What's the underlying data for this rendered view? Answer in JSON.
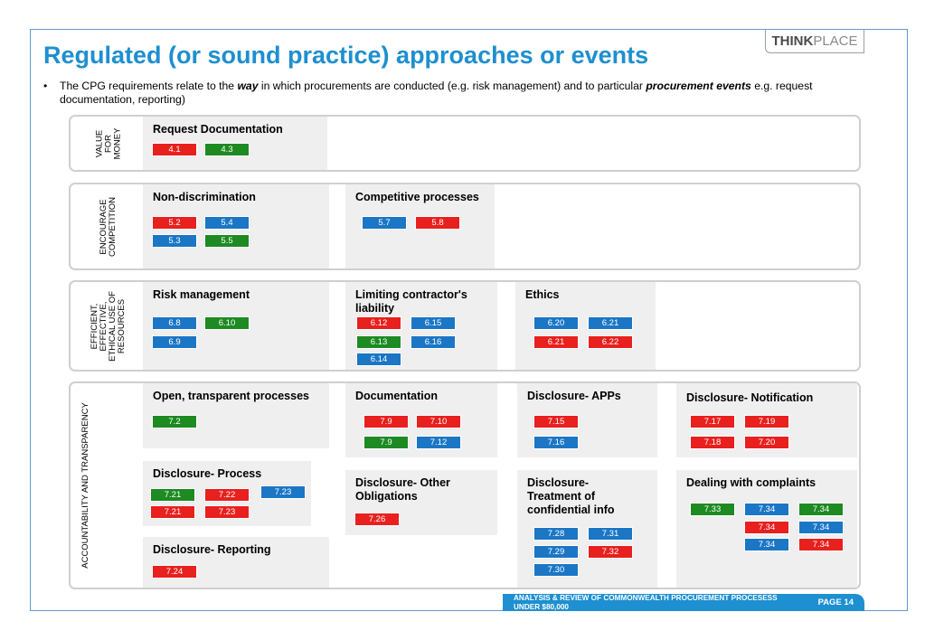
{
  "title": "Regulated (or sound practice) approaches or events",
  "logo": {
    "bold": "THINK",
    "light": "PLACE"
  },
  "bullet": {
    "dot": "•",
    "part1": "The CPG requirements relate to the ",
    "way": "way",
    "part2": " in which procurements are conducted (e.g. risk management) and to particular ",
    "events": "procurement events",
    "part3": " e.g. request documentation, reporting)"
  },
  "sections": {
    "vfm": {
      "label": [
        "VALUE",
        "FOR",
        "MONEY"
      ]
    },
    "ec": {
      "label": [
        "ENCOURAGE",
        "COMPETITION"
      ]
    },
    "eff": {
      "label": [
        "EFFICIENT,",
        "EFFECTIVE,",
        "ETHICAL USE OF",
        "RESOURCES"
      ]
    },
    "acc": {
      "label": [
        "ACCOUNTABILITY AND TRANSPARENCY"
      ]
    }
  },
  "boxes": {
    "request_doc": {
      "title": "Request Documentation",
      "tags": [
        "4.1",
        "4.3"
      ]
    },
    "non_disc": {
      "title": "Non-discrimination",
      "tags": [
        "5.2",
        "5.4",
        "5.3",
        "5.5"
      ]
    },
    "comp_proc": {
      "title": "Competitive processes",
      "tags": [
        "5.7",
        "5.8"
      ]
    },
    "risk": {
      "title": "Risk management",
      "tags": [
        "6.8",
        "6.10",
        "6.9"
      ]
    },
    "liability": {
      "title": "Limiting contractor's liability",
      "tags": [
        "6.12",
        "6.15",
        "6.13",
        "6.16",
        "6.14"
      ]
    },
    "ethics": {
      "title": "Ethics",
      "tags": [
        "6.20",
        "6.21",
        "6.21",
        "6.22"
      ]
    },
    "open": {
      "title": "Open, transparent processes",
      "tags": [
        "7.2"
      ]
    },
    "documentation": {
      "title": "Documentation",
      "tags": [
        "7.9",
        "7.10",
        "7.9",
        "7.12"
      ]
    },
    "apps": {
      "title": "Disclosure- APPs",
      "tags": [
        "7.15",
        "7.16"
      ]
    },
    "notification": {
      "title": "Disclosure- Notification",
      "tags": [
        "7.17",
        "7.19",
        "7.18",
        "7.20"
      ]
    },
    "process": {
      "title": "Disclosure- Process",
      "tags": [
        "7.21",
        "7.22",
        "7.23",
        "7.21",
        "7.23"
      ]
    },
    "other": {
      "title": "Disclosure- Other Obligations",
      "tags": [
        "7.26"
      ]
    },
    "confidential": {
      "title": "Disclosure- Treatment of confidential info",
      "tags": [
        "7.28",
        "7.31",
        "7.29",
        "7.32",
        "7.30"
      ]
    },
    "complaints": {
      "title": "Dealing with complaints",
      "tags": [
        "7.33",
        "7.34",
        "7.34",
        "7.34",
        "7.34",
        "7.34",
        "7.34"
      ]
    },
    "reporting": {
      "title": "Disclosure- Reporting",
      "tags": [
        "7.24"
      ]
    }
  },
  "footer": {
    "text": "ANALYSIS & REVIEW OF COMMONWEALTH PROCUREMENT PROCESESS UNDER $80,000",
    "page": "PAGE  14"
  },
  "colors": {
    "red": "#e8201e",
    "blue": "#1b76c5",
    "green": "#1d8a22",
    "title": "#1e8fd0"
  }
}
